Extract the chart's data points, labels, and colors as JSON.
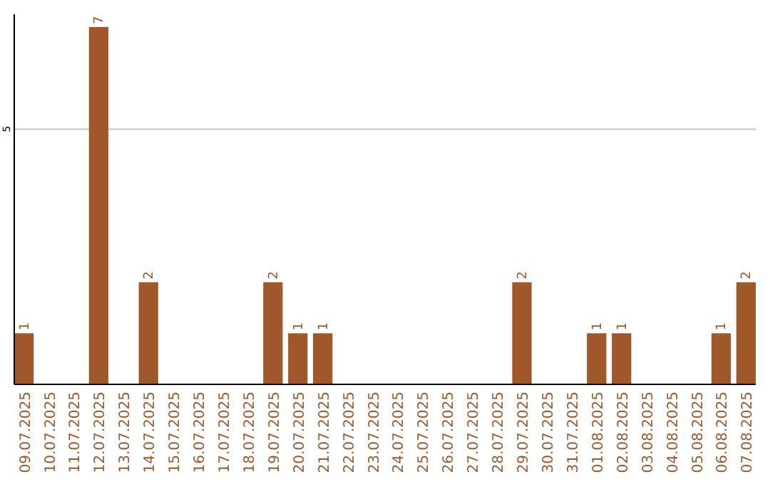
{
  "chart_data": {
    "type": "bar",
    "categories": [
      "09.07.2025",
      "10.07.2025",
      "11.07.2025",
      "12.07.2025",
      "13.07.2025",
      "14.07.2025",
      "15.07.2025",
      "16.07.2025",
      "17.07.2025",
      "18.07.2025",
      "19.07.2025",
      "20.07.2025",
      "21.07.2025",
      "22.07.2025",
      "23.07.2025",
      "24.07.2025",
      "25.07.2025",
      "26.07.2025",
      "27.07.2025",
      "28.07.2025",
      "29.07.2025",
      "30.07.2025",
      "31.07.2025",
      "01.08.2025",
      "02.08.2025",
      "03.08.2025",
      "04.08.2025",
      "05.08.2025",
      "06.08.2025",
      "07.08.2025"
    ],
    "values": [
      1,
      0,
      0,
      7,
      0,
      2,
      0,
      0,
      0,
      0,
      2,
      1,
      1,
      0,
      0,
      0,
      0,
      0,
      0,
      0,
      2,
      0,
      0,
      1,
      1,
      0,
      0,
      0,
      1,
      2
    ],
    "value_labels": [
      "1",
      null,
      null,
      "7",
      null,
      "2",
      null,
      null,
      null,
      null,
      "2",
      "1",
      "1",
      null,
      null,
      null,
      null,
      null,
      null,
      null,
      "2",
      null,
      null,
      "1",
      "1",
      null,
      null,
      null,
      "1",
      "2"
    ],
    "color": "#a0572a",
    "ylim": [
      0,
      7.25
    ],
    "yticks": [
      5
    ],
    "grid": "y"
  }
}
